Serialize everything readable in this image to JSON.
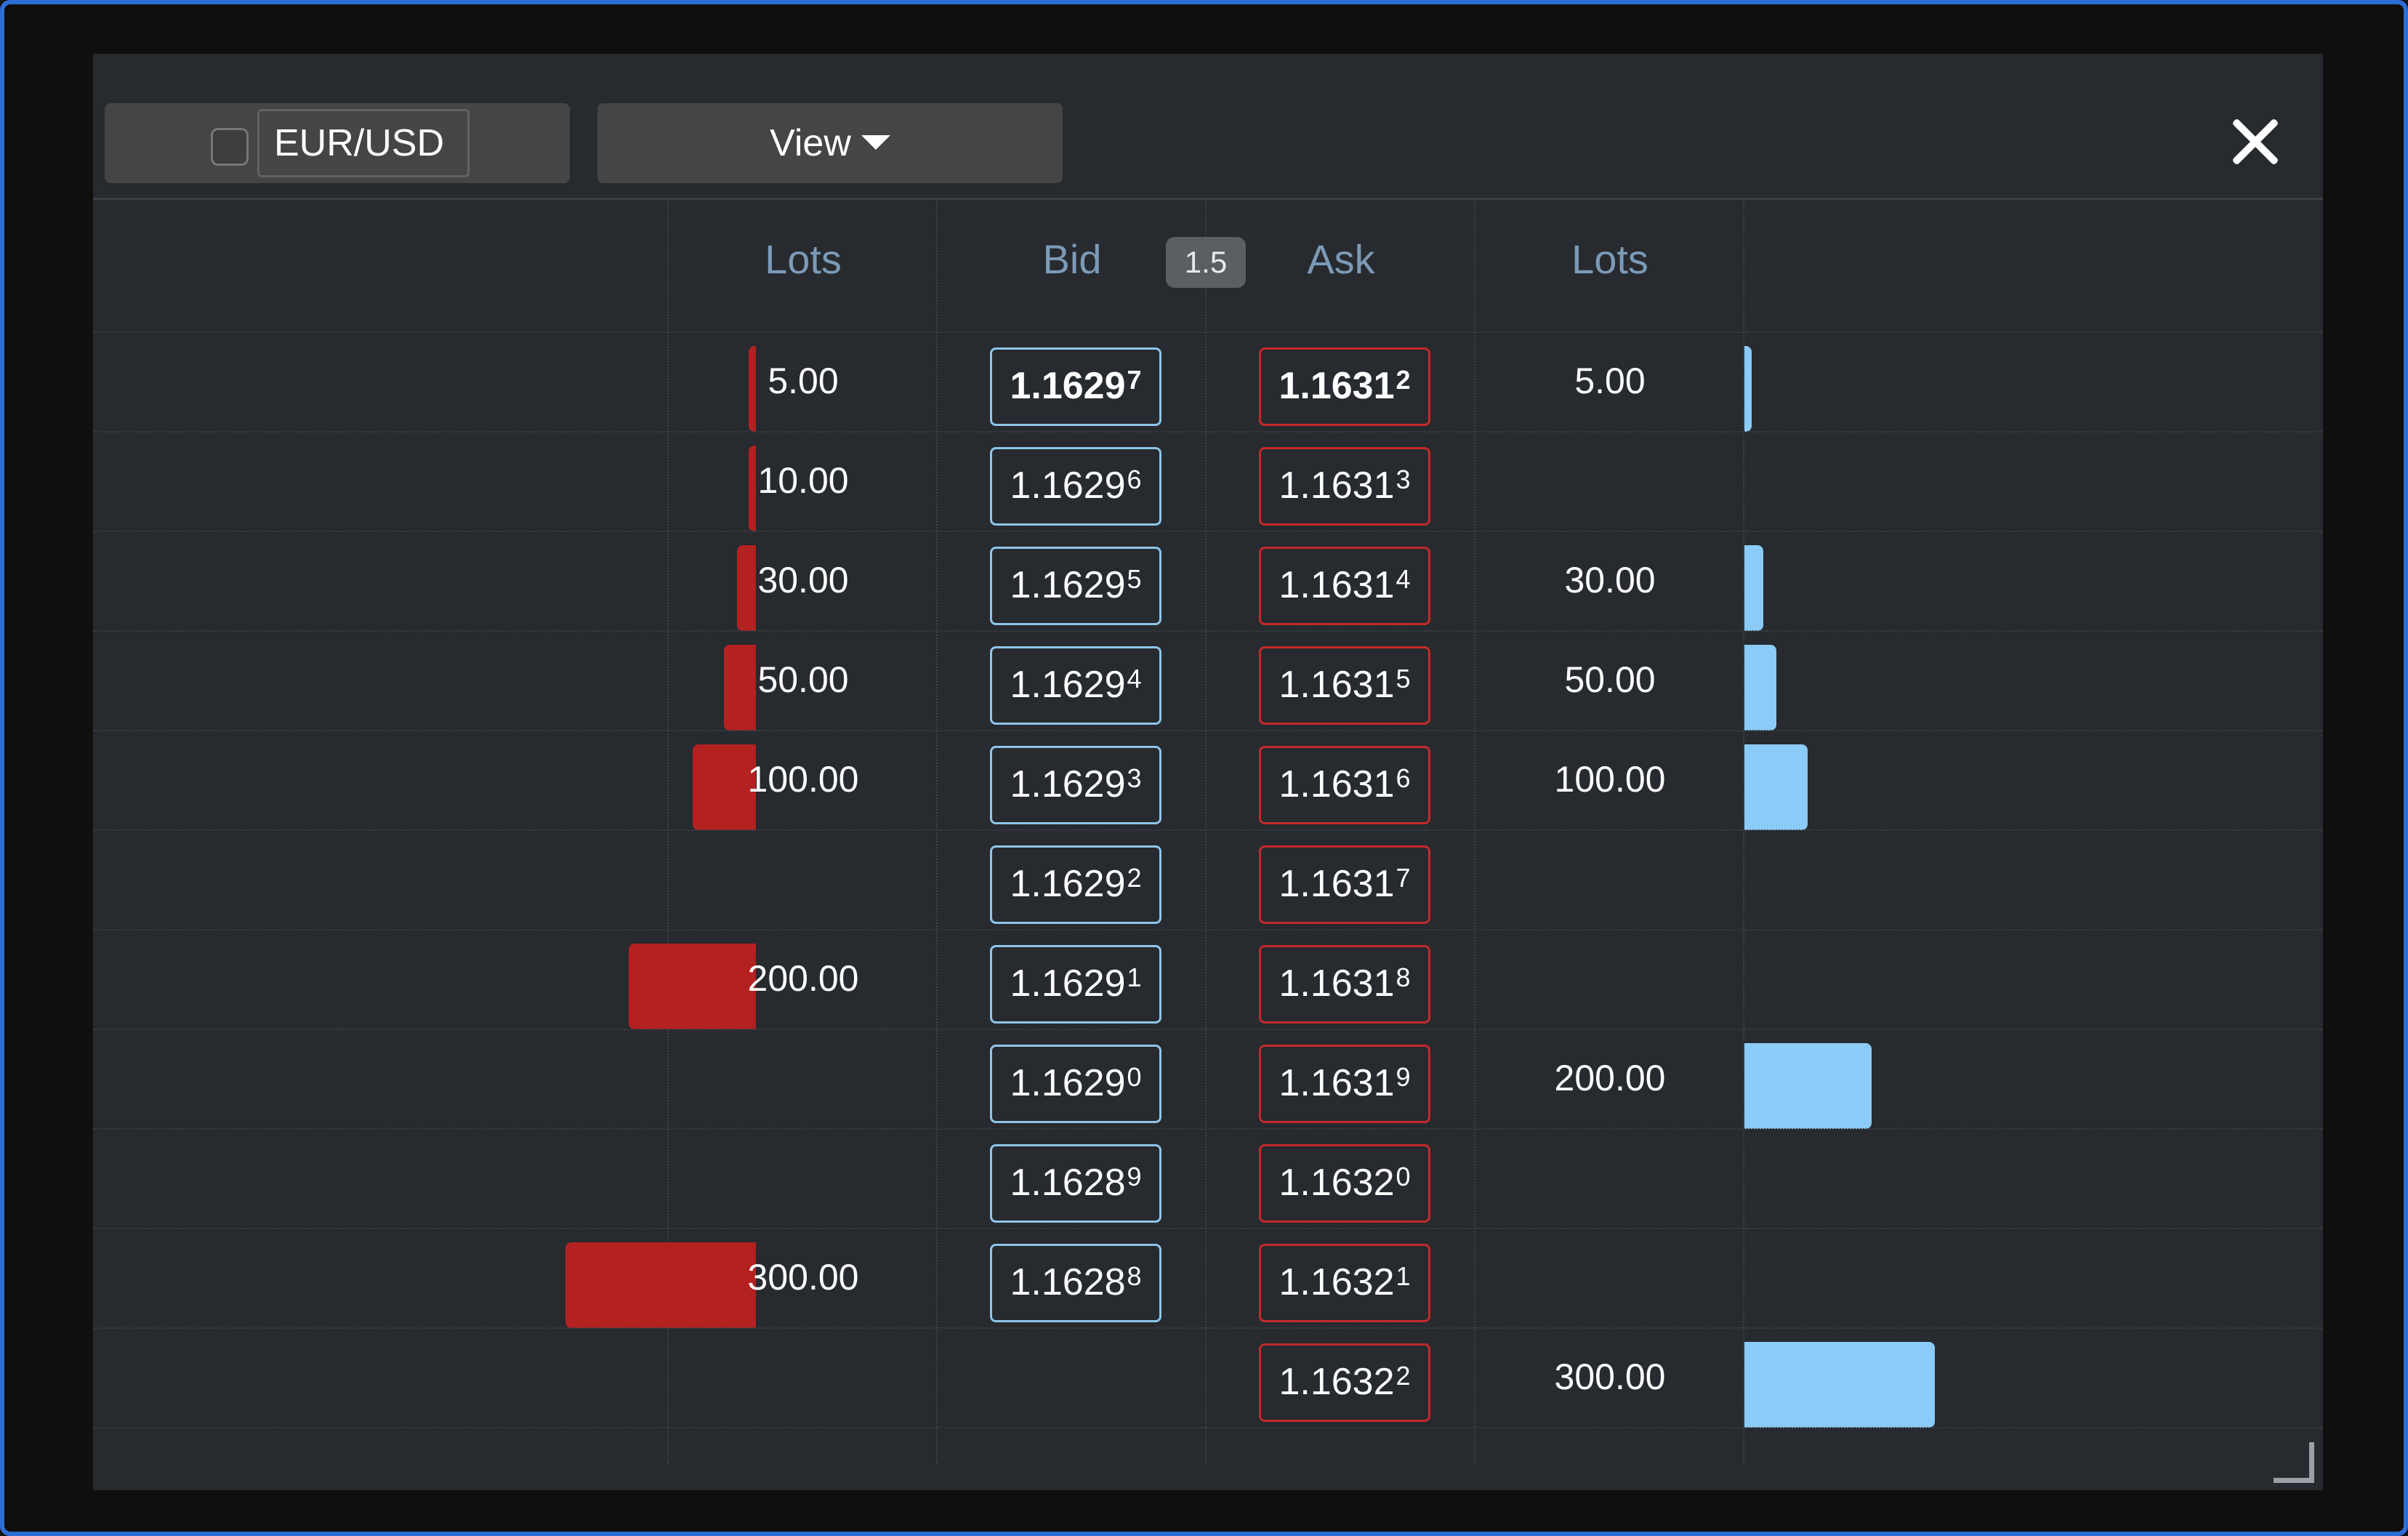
{
  "toolbar": {
    "symbol": "EUR/USD",
    "view_label": "View"
  },
  "icons": {
    "close": "close-icon",
    "dropdown": "caret-down-icon",
    "resize": "resize-grip-icon"
  },
  "colors": {
    "bid_border": "#8ec5ea",
    "ask_border": "#c32a2a",
    "bid_bar": "#b32121",
    "ask_bar": "#8bcbf7"
  },
  "headers": {
    "bid_lots": "Lots",
    "bid": "Bid",
    "spread": "1.5",
    "ask": "Ask",
    "ask_lots": "Lots"
  },
  "max_lots": 300,
  "rows": [
    {
      "bid_lots": "5.00",
      "bid_main": "1.1629",
      "bid_pip": "7",
      "ask_main": "1.1631",
      "ask_pip": "2",
      "ask_lots": "5.00",
      "best": true
    },
    {
      "bid_lots": "10.00",
      "bid_main": "1.1629",
      "bid_pip": "6",
      "ask_main": "1.1631",
      "ask_pip": "3",
      "ask_lots": ""
    },
    {
      "bid_lots": "30.00",
      "bid_main": "1.1629",
      "bid_pip": "5",
      "ask_main": "1.1631",
      "ask_pip": "4",
      "ask_lots": "30.00"
    },
    {
      "bid_lots": "50.00",
      "bid_main": "1.1629",
      "bid_pip": "4",
      "ask_main": "1.1631",
      "ask_pip": "5",
      "ask_lots": "50.00"
    },
    {
      "bid_lots": "100.00",
      "bid_main": "1.1629",
      "bid_pip": "3",
      "ask_main": "1.1631",
      "ask_pip": "6",
      "ask_lots": "100.00"
    },
    {
      "bid_lots": "",
      "bid_main": "1.1629",
      "bid_pip": "2",
      "ask_main": "1.1631",
      "ask_pip": "7",
      "ask_lots": ""
    },
    {
      "bid_lots": "200.00",
      "bid_main": "1.1629",
      "bid_pip": "1",
      "ask_main": "1.1631",
      "ask_pip": "8",
      "ask_lots": ""
    },
    {
      "bid_lots": "",
      "bid_main": "1.1629",
      "bid_pip": "0",
      "ask_main": "1.1631",
      "ask_pip": "9",
      "ask_lots": "200.00"
    },
    {
      "bid_lots": "",
      "bid_main": "1.1628",
      "bid_pip": "9",
      "ask_main": "1.1632",
      "ask_pip": "0",
      "ask_lots": ""
    },
    {
      "bid_lots": "300.00",
      "bid_main": "1.1628",
      "bid_pip": "8",
      "ask_main": "1.1632",
      "ask_pip": "1",
      "ask_lots": ""
    },
    {
      "bid_lots": "",
      "bid_main": "",
      "bid_pip": "",
      "ask_main": "1.1632",
      "ask_pip": "2",
      "ask_lots": "300.00"
    }
  ]
}
